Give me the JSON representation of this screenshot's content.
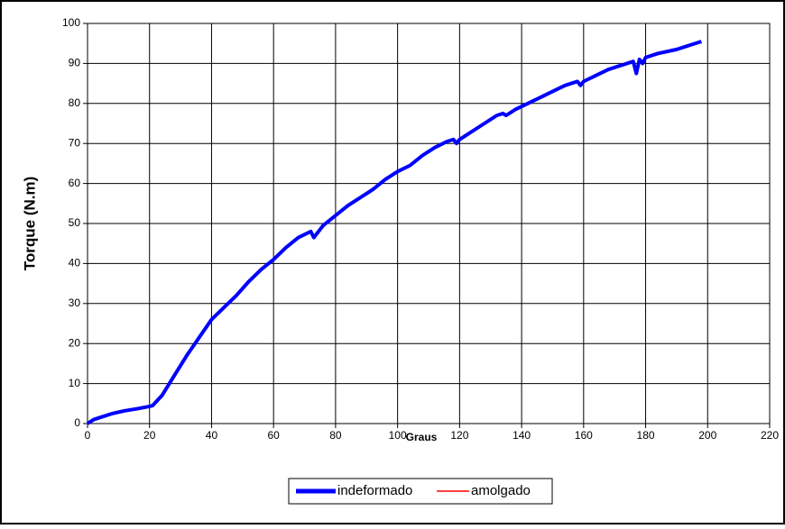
{
  "chart_data": {
    "type": "line",
    "ylabel": "Torque (N.m)",
    "xlabel": "Graus",
    "x": [
      0,
      2,
      4,
      8,
      12,
      16,
      20,
      21,
      24,
      28,
      32,
      36,
      40,
      44,
      48,
      52,
      56,
      60,
      64,
      68,
      72,
      73,
      76,
      80,
      84,
      88,
      92,
      96,
      100,
      104,
      108,
      112,
      116,
      118,
      119,
      120,
      124,
      128,
      132,
      134,
      135,
      138,
      142,
      146,
      150,
      154,
      158,
      159,
      160,
      164,
      168,
      172,
      176,
      177,
      178,
      179,
      180,
      184,
      190,
      198
    ],
    "series": [
      {
        "name": "indeformado",
        "color": "#0000ff",
        "values": [
          0,
          1,
          1.5,
          2.5,
          3.2,
          3.7,
          4.3,
          4.5,
          7,
          12,
          17,
          21.5,
          26,
          29,
          32,
          35.5,
          38.5,
          41,
          44,
          46.5,
          48,
          46.5,
          49.5,
          52,
          54.5,
          56.5,
          58.5,
          61,
          63,
          64.5,
          67,
          69,
          70.5,
          71,
          70,
          71,
          73,
          75,
          77,
          77.5,
          77,
          78.5,
          80,
          81.5,
          83,
          84.5,
          85.5,
          84.5,
          85.5,
          87,
          88.5,
          89.5,
          90.5,
          87.5,
          91,
          90,
          91.5,
          92.5,
          93.5,
          95.5
        ]
      },
      {
        "name": "amolgado",
        "color": "#ff0000",
        "values": [
          null,
          null,
          null,
          null,
          null,
          null,
          null,
          null,
          null,
          null,
          null,
          null,
          null,
          null,
          null,
          null,
          null,
          null,
          null,
          null,
          null,
          null,
          null,
          null,
          null,
          null,
          null,
          null,
          null,
          null,
          null,
          null,
          null,
          null,
          null,
          null,
          null,
          null,
          null,
          null,
          null,
          null,
          null,
          null,
          null,
          null,
          null,
          null,
          null,
          null,
          null,
          null,
          null,
          null,
          null,
          null,
          null,
          null,
          null,
          null
        ]
      }
    ],
    "xlim": [
      0,
      220
    ],
    "xticks": [
      0,
      20,
      40,
      60,
      80,
      100,
      120,
      140,
      160,
      180,
      200,
      220
    ],
    "ylim": [
      0,
      100
    ],
    "yticks": [
      0,
      10,
      20,
      30,
      40,
      50,
      60,
      70,
      80,
      90,
      100
    ],
    "grid": true,
    "legend": "bottom"
  }
}
